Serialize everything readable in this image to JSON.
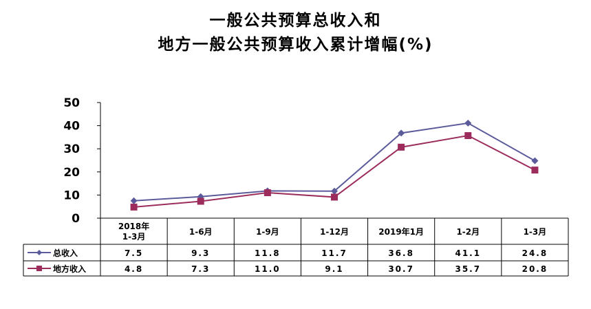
{
  "title_line1": "一般公共预算总收入和",
  "title_line2": "地方一般公共预算收入累计增幅(%)",
  "chart_data": {
    "type": "line",
    "title": "一般公共预算总收入和地方一般公共预算收入累计增幅(%)",
    "categories": [
      [
        "2018年",
        "1-3月"
      ],
      [
        "1-6月"
      ],
      [
        "1-9月"
      ],
      [
        "1-12月"
      ],
      [
        "2019年1月"
      ],
      [
        "1-2月"
      ],
      [
        "1-3月"
      ]
    ],
    "series": [
      {
        "name": "总收入",
        "values": [
          7.5,
          9.3,
          11.8,
          11.7,
          36.8,
          41.1,
          24.8
        ],
        "labels": [
          "7.5",
          "9.3",
          "11.8",
          "11.7",
          "36.8",
          "41.1",
          "24.8"
        ],
        "color": "#5b5b9b",
        "marker": "diamond"
      },
      {
        "name": "地方收入",
        "values": [
          4.8,
          7.3,
          11.0,
          9.1,
          30.7,
          35.7,
          20.8
        ],
        "labels": [
          "4.8",
          "7.3",
          "11.0",
          "9.1",
          "30.7",
          "35.7",
          "20.8"
        ],
        "color": "#9b2c5c",
        "marker": "square"
      }
    ],
    "ylim": [
      0,
      50
    ],
    "yticks": [
      "0",
      "10",
      "20",
      "30",
      "40",
      "50"
    ],
    "grid": false,
    "legend": "data-table"
  }
}
